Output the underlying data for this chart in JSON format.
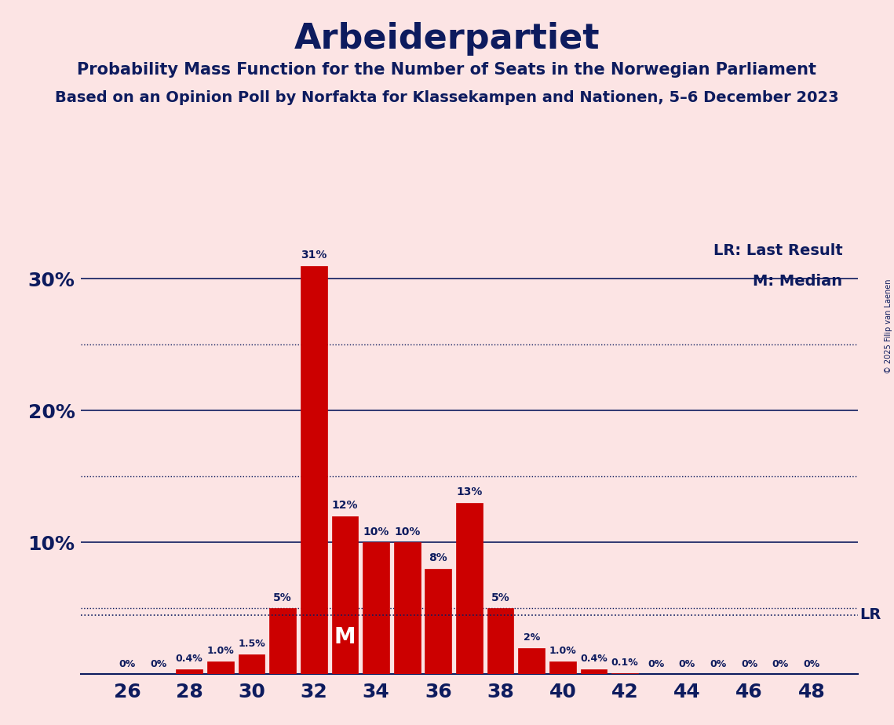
{
  "title": "Arbeiderpartiet",
  "subtitle1": "Probability Mass Function for the Number of Seats in the Norwegian Parliament",
  "subtitle2": "Based on an Opinion Poll by Norfakta for Klassekampen and Nationen, 5–6 December 2023",
  "copyright": "© 2025 Filip van Laenen",
  "seats": [
    26,
    27,
    28,
    29,
    30,
    31,
    32,
    33,
    34,
    35,
    36,
    37,
    38,
    39,
    40,
    41,
    42,
    43,
    44,
    45,
    46,
    47,
    48
  ],
  "values": [
    0.0,
    0.0,
    0.4,
    1.0,
    1.5,
    5.0,
    31.0,
    12.0,
    10.0,
    10.0,
    8.0,
    13.0,
    5.0,
    2.0,
    1.0,
    0.4,
    0.1,
    0.0,
    0.0,
    0.0,
    0.0,
    0.0,
    0.0
  ],
  "labels": [
    "0%",
    "0%",
    "0.4%",
    "1.0%",
    "1.5%",
    "5%",
    "31%",
    "12%",
    "10%",
    "10%",
    "8%",
    "13%",
    "5%",
    "2%",
    "1.0%",
    "0.4%",
    "0.1%",
    "0%",
    "0%",
    "0%",
    "0%",
    "0%",
    "0%"
  ],
  "bar_color": "#cc0000",
  "background_color": "#fce4e4",
  "text_color": "#0d1b5e",
  "grid_color": "#0d1b5e",
  "solid_line_values": [
    10.0,
    20.0,
    30.0
  ],
  "dotted_line_values": [
    5.0,
    15.0,
    25.0
  ],
  "ylim": [
    0,
    33
  ],
  "lr_line_y": 4.5,
  "median_seat": 33,
  "median_label": "M",
  "lr_label": "LR",
  "legend_lr": "LR: Last Result",
  "legend_m": "M: Median",
  "xtick_seats": [
    26,
    28,
    30,
    32,
    34,
    36,
    38,
    40,
    42,
    44,
    46,
    48
  ],
  "xlim": [
    24.5,
    49.5
  ]
}
